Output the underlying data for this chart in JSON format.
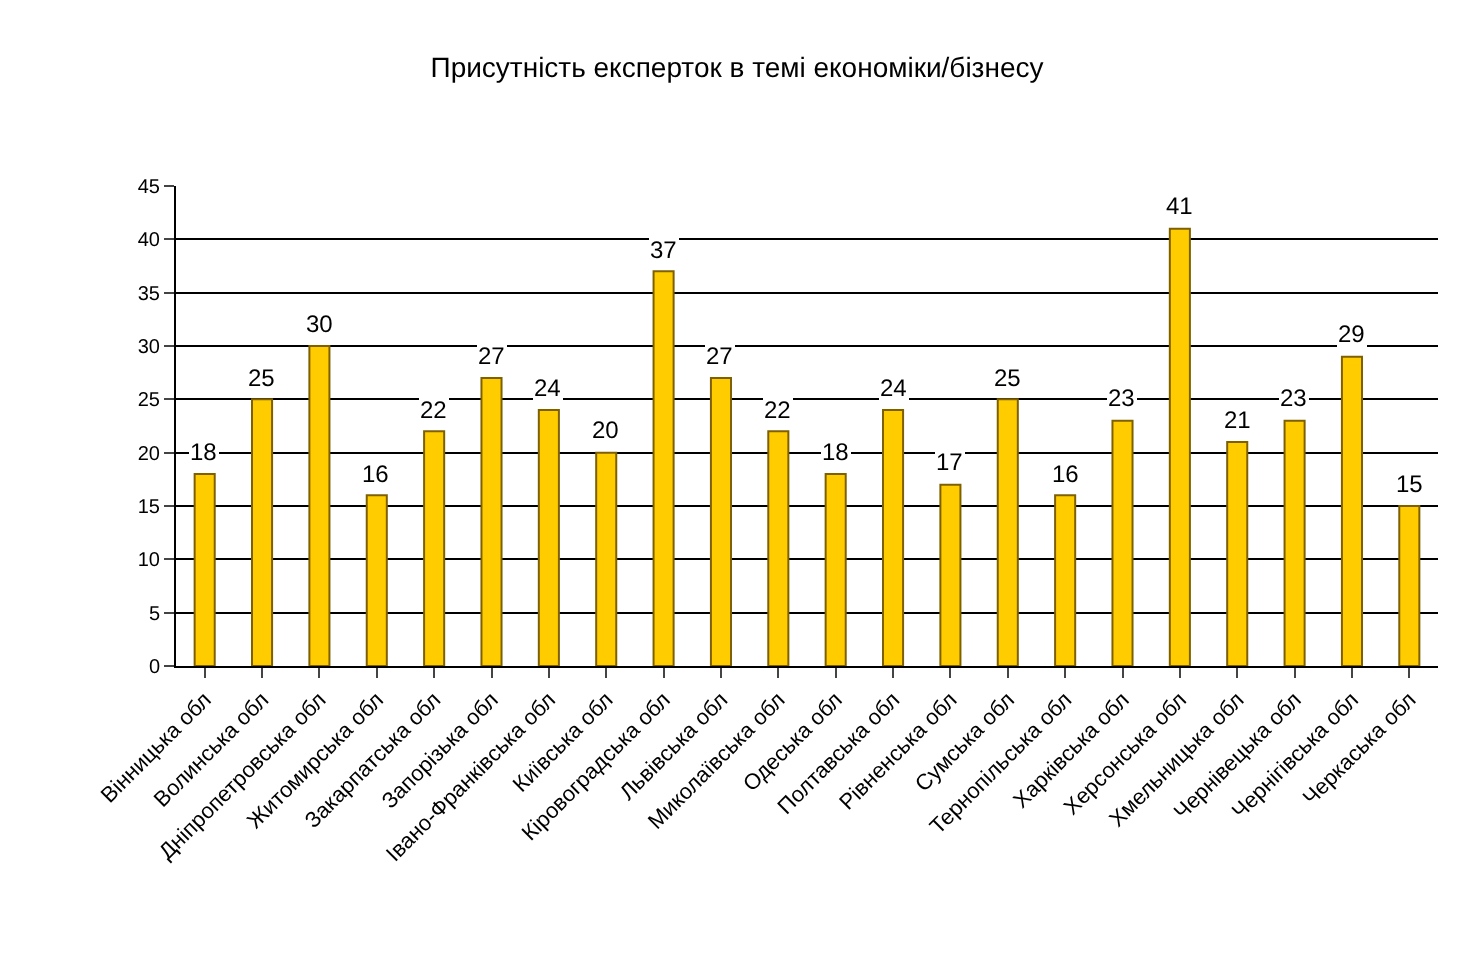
{
  "chart_data": {
    "type": "bar",
    "title": "Присутність експерток в темі економіки/бізнесу",
    "categories": [
      "Вінницька обл",
      "Волинська обл",
      "Дніпропетровська обл",
      "Житомирська обл",
      "Закарпатська обл",
      "Запорізька обл",
      "Івано-Франківська обл",
      "Київська обл",
      "Кіровоградська обл",
      "Львівська обл",
      "Миколаївська обл",
      "Одеська обл",
      "Полтавська обл",
      "Рівненська обл",
      "Сумська обл",
      "Тернопільська обл",
      "Харківська обл",
      "Херсонська обл",
      "Хмельницька обл",
      "Чернівецька обл",
      "Чернігівська обл",
      "Черкаська обл"
    ],
    "values": [
      18,
      25,
      30,
      16,
      22,
      27,
      24,
      20,
      37,
      27,
      22,
      18,
      24,
      17,
      25,
      16,
      23,
      41,
      21,
      23,
      29,
      15
    ],
    "color": "#ffcc00",
    "data_labels": true,
    "grid": "y",
    "legend": false,
    "ylim": [
      0,
      45
    ],
    "yticks": [
      0,
      5,
      10,
      15,
      20,
      25,
      30,
      35,
      40,
      45
    ]
  }
}
